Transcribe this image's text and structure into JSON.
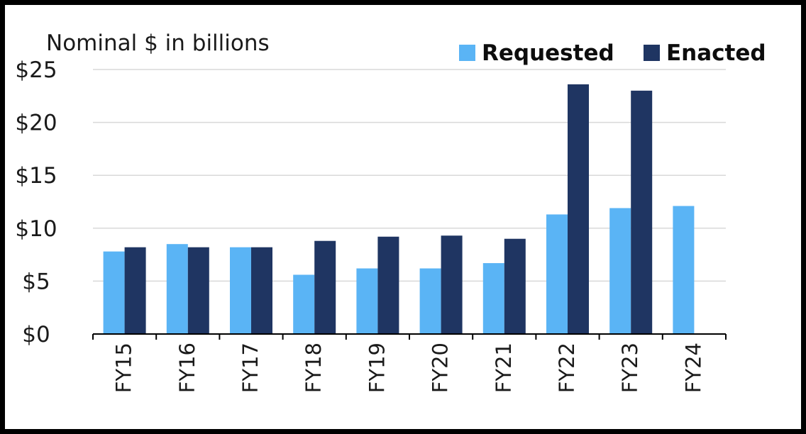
{
  "chart_data": {
    "type": "bar",
    "unit_label": "Nominal $ in billions",
    "categories": [
      "FY15",
      "FY16",
      "FY17",
      "FY18",
      "FY19",
      "FY20",
      "FY21",
      "FY22",
      "FY23",
      "FY24"
    ],
    "series": [
      {
        "name": "Requested",
        "color": "#5ab4f5",
        "values": [
          7.8,
          8.5,
          8.2,
          5.6,
          6.2,
          6.2,
          6.7,
          11.3,
          11.9,
          12.1
        ]
      },
      {
        "name": "Enacted",
        "color": "#1f3562",
        "values": [
          8.2,
          8.2,
          8.2,
          8.8,
          9.2,
          9.3,
          9.0,
          23.6,
          23.0,
          null
        ]
      }
    ],
    "ylim": [
      0,
      25
    ],
    "yticks": [
      0,
      5,
      10,
      15,
      20,
      25
    ],
    "ytick_labels": [
      "$0",
      "$5",
      "$10",
      "$15",
      "$20",
      "$25"
    ],
    "grid": true,
    "legend_position": "top-right"
  }
}
